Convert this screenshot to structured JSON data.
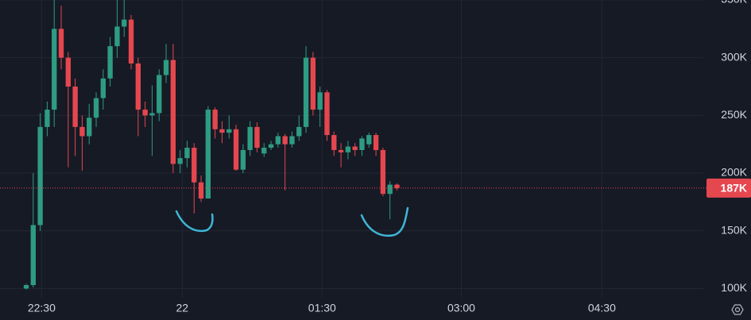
{
  "chart_data": {
    "type": "candlestick",
    "up_color": "#2e9c82",
    "down_color": "#e5474f",
    "grid": true,
    "open": [
      100000,
      103000,
      155000,
      240000,
      255000,
      325000,
      300000,
      275000,
      240000,
      232000,
      248000,
      265000,
      282000,
      310000,
      327000,
      333000,
      295000,
      255000,
      250000,
      252000,
      285000,
      298000,
      208000,
      213000,
      222000,
      192000,
      178000,
      255000,
      238000,
      235000,
      238000,
      203000,
      220000,
      240000,
      217000,
      222000,
      225000,
      232000,
      225000,
      232000,
      240000,
      300000,
      255000,
      270000,
      233000,
      220000,
      218000,
      223000,
      220000,
      225000,
      233000,
      220000,
      182000,
      190000
    ],
    "high": [
      104000,
      200000,
      252000,
      262000,
      350000,
      345000,
      305000,
      282000,
      250000,
      260000,
      270000,
      290000,
      318000,
      350000,
      350000,
      337000,
      300000,
      262000,
      276000,
      290000,
      312000,
      312000,
      220000,
      228000,
      226000,
      198000,
      258000,
      257000,
      245000,
      250000,
      242000,
      225000,
      245000,
      244000,
      226000,
      228000,
      235000,
      234000,
      236000,
      250000,
      310000,
      305000,
      275000,
      272000,
      236000,
      226000,
      228000,
      226000,
      232000,
      235000,
      235000,
      222000,
      193000,
      191000
    ],
    "low": [
      99000,
      101000,
      150000,
      232000,
      240000,
      290000,
      205000,
      215000,
      202000,
      225000,
      240000,
      255000,
      275000,
      300000,
      318000,
      290000,
      232000,
      240000,
      215000,
      245000,
      278000,
      200000,
      200000,
      205000,
      165000,
      175000,
      178000,
      230000,
      226000,
      230000,
      202000,
      200000,
      215000,
      218000,
      214000,
      220000,
      222000,
      185000,
      222000,
      228000,
      235000,
      250000,
      240000,
      228000,
      215000,
      205000,
      212000,
      215000,
      215000,
      222000,
      215000,
      180000,
      160000,
      185000
    ],
    "close": [
      103000,
      155000,
      240000,
      255000,
      325000,
      300000,
      275000,
      240000,
      232000,
      248000,
      265000,
      282000,
      310000,
      327000,
      333000,
      295000,
      255000,
      250000,
      252000,
      285000,
      298000,
      208000,
      213000,
      222000,
      192000,
      178000,
      255000,
      238000,
      235000,
      238000,
      203000,
      220000,
      240000,
      222000,
      222000,
      225000,
      232000,
      225000,
      232000,
      240000,
      300000,
      255000,
      270000,
      233000,
      220000,
      218000,
      223000,
      220000,
      230000,
      233000,
      220000,
      182000,
      190000,
      187000
    ],
    "last_price": {
      "value": 187000,
      "label": "187K"
    },
    "ylim": [
      92000,
      350000
    ],
    "yticks": [
      {
        "value": 100000,
        "label": "100K"
      },
      {
        "value": 150000,
        "label": "150K"
      },
      {
        "value": 200000,
        "label": "200K"
      },
      {
        "value": 250000,
        "label": "250K"
      },
      {
        "value": 300000,
        "label": "300K"
      },
      {
        "value": 350000,
        "label": "350K"
      }
    ],
    "xlim": [
      -3.75,
      96.8
    ],
    "xticks": [
      {
        "value": 2.2,
        "label": "22:30"
      },
      {
        "value": 22.3,
        "label": "22"
      },
      {
        "value": 42.3,
        "label": "01:30"
      },
      {
        "value": 62.2,
        "label": "03:00"
      },
      {
        "value": 82.3,
        "label": "04:30"
      }
    ]
  }
}
